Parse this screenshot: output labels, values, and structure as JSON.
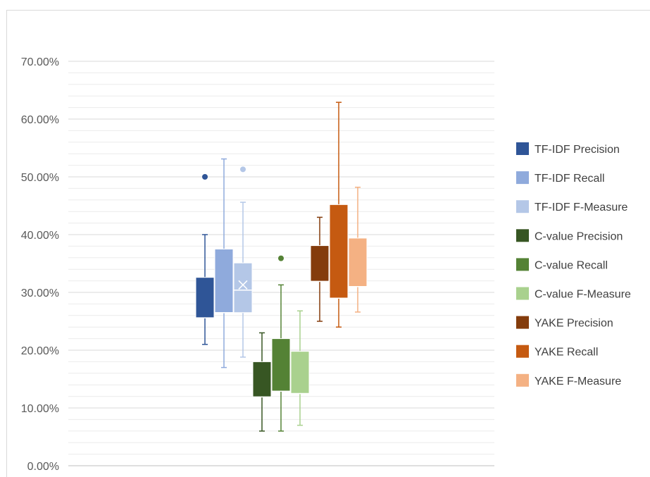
{
  "chart_data": {
    "type": "box",
    "title": "",
    "xlabel": "",
    "ylabel": "",
    "ylim": [
      0,
      0.7
    ],
    "y_tick_format": "percent_2dp",
    "y_ticks": [
      "0.00%",
      "10.00%",
      "20.00%",
      "30.00%",
      "40.00%",
      "50.00%",
      "60.00%",
      "70.00%"
    ],
    "grid": {
      "major": true,
      "minor": true
    },
    "legend_position": "right",
    "series": [
      {
        "name": "TF-IDF Precision",
        "color": "#2f5597",
        "style": "filled",
        "min": 0.21,
        "q1": 0.256,
        "median": 0.256,
        "q3": 0.326,
        "max": 0.4,
        "outliers": [
          0.5
        ]
      },
      {
        "name": "TF-IDF Recall",
        "color": "#8faadc",
        "style": "filled",
        "min": 0.17,
        "q1": 0.265,
        "median": 0.265,
        "q3": 0.375,
        "max": 0.531,
        "outliers": []
      },
      {
        "name": "TF-IDF F-Measure",
        "color": "#b4c7e7",
        "style": "filled",
        "min": 0.188,
        "q1": 0.265,
        "median": 0.304,
        "q3": 0.351,
        "max": 0.456,
        "mean": 0.313,
        "outliers": [
          0.513
        ]
      },
      {
        "name": "C-value Precision",
        "color": "#375623",
        "style": "filled",
        "min": 0.06,
        "q1": 0.119,
        "median": 0.119,
        "q3": 0.18,
        "max": 0.23,
        "outliers": []
      },
      {
        "name": "C-value Recall",
        "color": "#548235",
        "style": "filled",
        "min": 0.06,
        "q1": 0.129,
        "median": 0.129,
        "q3": 0.22,
        "max": 0.313,
        "outliers": [
          0.359
        ]
      },
      {
        "name": "C-value F-Measure",
        "color": "#a9d18e",
        "style": "filled",
        "min": 0.07,
        "q1": 0.125,
        "median": 0.125,
        "q3": 0.198,
        "max": 0.268,
        "outliers": []
      },
      {
        "name": "YAKE Precision",
        "color": "#843c0c",
        "style": "filled",
        "min": 0.25,
        "q1": 0.319,
        "median": 0.319,
        "q3": 0.381,
        "max": 0.43,
        "outliers": []
      },
      {
        "name": "YAKE Recall",
        "color": "#c55a11",
        "style": "filled",
        "min": 0.24,
        "q1": 0.29,
        "median": 0.29,
        "q3": 0.452,
        "max": 0.629,
        "outliers": []
      },
      {
        "name": "YAKE F-Measure",
        "color": "#f4b183",
        "style": "filled",
        "min": 0.266,
        "q1": 0.31,
        "median": 0.31,
        "q3": 0.394,
        "max": 0.482,
        "outliers": []
      }
    ]
  }
}
